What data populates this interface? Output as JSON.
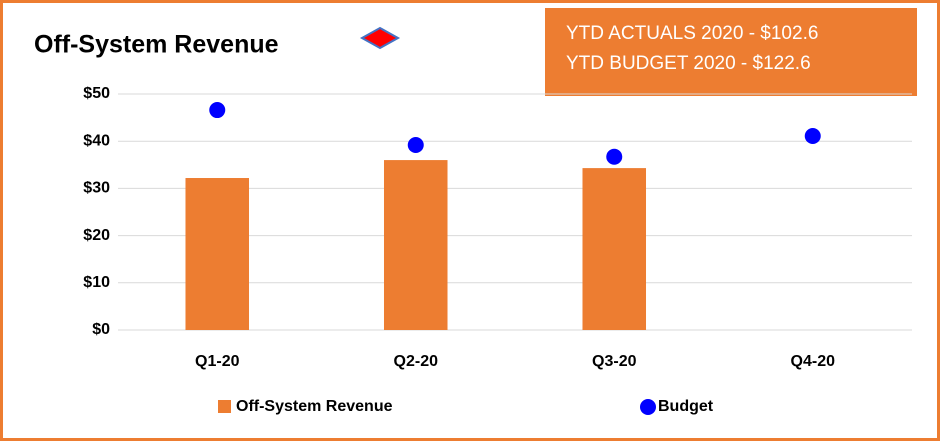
{
  "chart_data": {
    "type": "bar",
    "title": "Off-System Revenue",
    "annotations": [
      "YTD ACTUALS 2020 - $102.6",
      "YTD BUDGET 2020 -  $122.6"
    ],
    "categories": [
      "Q1-20",
      "Q2-20",
      "Q3-20",
      "Q4-20"
    ],
    "series": [
      {
        "name": "Off-System Revenue",
        "type": "bar",
        "color": "#ed7d31",
        "values": [
          32.2,
          36.0,
          34.3,
          null
        ]
      },
      {
        "name": "Budget",
        "type": "scatter",
        "color": "#0000ff",
        "values": [
          46.6,
          39.2,
          36.7,
          41.1
        ]
      }
    ],
    "ylim": [
      0,
      50
    ],
    "yticks": [
      {
        "value": 0,
        "label": "$0"
      },
      {
        "value": 10,
        "label": "$10"
      },
      {
        "value": 20,
        "label": "$20"
      },
      {
        "value": 30,
        "label": "$30"
      },
      {
        "value": 40,
        "label": "$40"
      },
      {
        "value": 50,
        "label": "$50"
      }
    ],
    "grid": true,
    "legend": "bottom"
  }
}
